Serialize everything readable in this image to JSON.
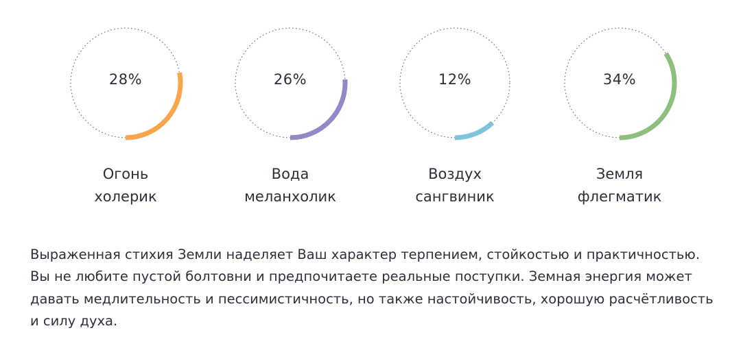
{
  "elements": [
    {
      "id": "fire",
      "percent": "28%",
      "value": 0.28,
      "name": "Огонь",
      "temperament": "холерик",
      "color": "#fba54c"
    },
    {
      "id": "water",
      "percent": "26%",
      "value": 0.26,
      "name": "Вода",
      "temperament": "меланхолик",
      "color": "#9289c5"
    },
    {
      "id": "air",
      "percent": "12%",
      "value": 0.12,
      "name": "Воздух",
      "temperament": "сангвиник",
      "color": "#82c3dc"
    },
    {
      "id": "earth",
      "percent": "34%",
      "value": 0.34,
      "name": "Земля",
      "temperament": "флегматик",
      "color": "#8dc07d"
    }
  ],
  "description": "Выраженная стихия Земли наделяет Ваш характер терпением, стойкостью и практичностью. Вы не любите пустой болтовни и предпочитаете реальные поступки. Земная энергия может давать медлительность и пессимистичность, но также настойчивость, хорошую расчётливость и силу духа."
}
